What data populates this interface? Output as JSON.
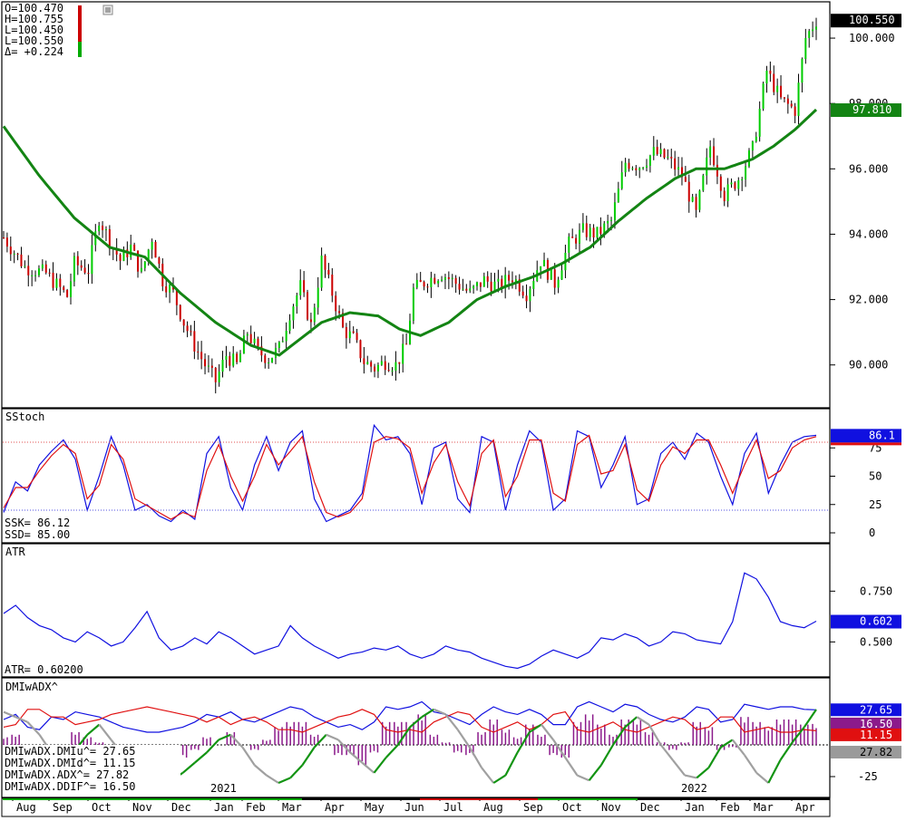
{
  "colors": {
    "price_up": "#00cc00",
    "price_down": "#cc0000",
    "ma": "#138413",
    "stoch_k": "#1010e0",
    "stoch_d": "#e01010",
    "atr": "#1010e0",
    "dmi_plus": "#1010e0",
    "dmi_minus": "#e01010",
    "ddif_hist": "#8b1a8b",
    "adx_up": "#139413",
    "adx_down": "#a0a0a0",
    "panel_border": "#000000",
    "stoch_upper": "#e05050",
    "stoch_lower": "#5050e0",
    "month_bar_red": "#cc0000",
    "month_bar_green": "#00aa00"
  },
  "price_readout": {
    "open": "O=100.470",
    "high": "H=100.755",
    "low": "L=100.450",
    "last": "L=100.550",
    "change": "Δ= +0.224"
  },
  "stoch_readout": {
    "ssk": "SSK=     86.12",
    "ssd": "SSD=     85.00"
  },
  "atr_readout": {
    "atr": "ATR=   0.60200"
  },
  "dmi_readout": {
    "plus": "DMIwADX.DMIu^=     27.65",
    "minus": "DMIwADX.DMId^=     11.15",
    "adx": "DMIwADX.ADX^=      27.82",
    "ddif": "DMIwADX.DDIF^=     16.50"
  },
  "chart_data": [
    {
      "type": "candlestick",
      "title": "",
      "ylim": [
        88.8,
        101.0
      ],
      "yticks": [
        "100.000",
        "98.000",
        "96.000",
        "94.000",
        "92.000",
        "90.000"
      ],
      "last_price_label": "100.550",
      "ma_label": "97.810",
      "x_months": [
        "Aug",
        "Sep",
        "Oct",
        "Nov",
        "Dec",
        "2021",
        "Jan",
        "Feb",
        "Mar",
        "Apr",
        "May",
        "Jun",
        "Jul",
        "Aug",
        "Sep",
        "Oct",
        "Nov",
        "Dec",
        "2022",
        "Jan",
        "Feb",
        "Mar",
        "Apr"
      ],
      "close_path": [
        [
          0,
          93.9
        ],
        [
          6,
          93.0
        ],
        [
          12,
          92.8
        ],
        [
          18,
          92.1
        ],
        [
          20,
          93.1
        ],
        [
          24,
          92.9
        ],
        [
          27,
          94.5
        ],
        [
          30,
          93.8
        ],
        [
          33,
          93.2
        ],
        [
          36,
          93.6
        ],
        [
          39,
          92.8
        ],
        [
          42,
          93.9
        ],
        [
          45,
          92.6
        ],
        [
          48,
          92.2
        ],
        [
          51,
          91.3
        ],
        [
          54,
          90.6
        ],
        [
          57,
          90.0
        ],
        [
          60,
          89.5
        ],
        [
          63,
          90.3
        ],
        [
          66,
          90.0
        ],
        [
          69,
          91.0
        ],
        [
          72,
          90.4
        ],
        [
          75,
          90.2
        ],
        [
          78,
          90.5
        ],
        [
          81,
          91.6
        ],
        [
          84,
          92.4
        ],
        [
          87,
          91.2
        ],
        [
          90,
          93.2
        ],
        [
          93,
          92.2
        ],
        [
          96,
          91.1
        ],
        [
          99,
          90.8
        ],
        [
          102,
          90.1
        ],
        [
          105,
          89.9
        ],
        [
          108,
          90.1
        ],
        [
          111,
          90.0
        ],
        [
          114,
          90.6
        ],
        [
          116,
          92.3
        ],
        [
          120,
          92.6
        ],
        [
          124,
          92.8
        ],
        [
          128,
          92.5
        ],
        [
          132,
          92.2
        ],
        [
          136,
          92.6
        ],
        [
          140,
          92.4
        ],
        [
          144,
          92.7
        ],
        [
          148,
          92.2
        ],
        [
          152,
          93.2
        ],
        [
          156,
          92.5
        ],
        [
          160,
          93.7
        ],
        [
          164,
          94.1
        ],
        [
          168,
          94.0
        ],
        [
          172,
          94.4
        ],
        [
          176,
          96.2
        ],
        [
          180,
          96.1
        ],
        [
          184,
          96.5
        ],
        [
          188,
          96.3
        ],
        [
          192,
          95.8
        ],
        [
          196,
          94.6
        ],
        [
          200,
          96.7
        ],
        [
          204,
          95.2
        ],
        [
          208,
          95.7
        ],
        [
          212,
          96.6
        ],
        [
          216,
          99.0
        ],
        [
          220,
          98.1
        ],
        [
          224,
          97.8
        ],
        [
          227,
          100.0
        ],
        [
          230,
          100.55
        ]
      ],
      "ma_path": [
        [
          0,
          97.3
        ],
        [
          10,
          95.8
        ],
        [
          20,
          94.5
        ],
        [
          30,
          93.6
        ],
        [
          40,
          93.3
        ],
        [
          50,
          92.2
        ],
        [
          60,
          91.3
        ],
        [
          70,
          90.6
        ],
        [
          78,
          90.3
        ],
        [
          84,
          90.8
        ],
        [
          90,
          91.3
        ],
        [
          98,
          91.6
        ],
        [
          106,
          91.5
        ],
        [
          112,
          91.1
        ],
        [
          118,
          90.9
        ],
        [
          126,
          91.3
        ],
        [
          134,
          92.0
        ],
        [
          142,
          92.4
        ],
        [
          150,
          92.7
        ],
        [
          158,
          93.1
        ],
        [
          166,
          93.6
        ],
        [
          174,
          94.4
        ],
        [
          182,
          95.1
        ],
        [
          190,
          95.7
        ],
        [
          196,
          96.0
        ],
        [
          204,
          96.0
        ],
        [
          212,
          96.3
        ],
        [
          218,
          96.7
        ],
        [
          224,
          97.2
        ],
        [
          230,
          97.81
        ]
      ]
    },
    {
      "type": "line",
      "title": "SStoch",
      "ylim": [
        0,
        100
      ],
      "yticks": [
        "75",
        "50",
        "25",
        "0"
      ],
      "overbought": 80,
      "oversold": 20,
      "series": [
        {
          "name": "SSK",
          "last_label": "86.1",
          "values": [
            18,
            45,
            37,
            60,
            72,
            82,
            65,
            20,
            50,
            85,
            60,
            20,
            25,
            15,
            10,
            20,
            12,
            70,
            85,
            40,
            20,
            60,
            85,
            55,
            80,
            90,
            30,
            10,
            15,
            20,
            35,
            95,
            82,
            85,
            70,
            25,
            75,
            80,
            30,
            18,
            85,
            80,
            20,
            60,
            90,
            80,
            20,
            30,
            90,
            85,
            40,
            60,
            85,
            25,
            30,
            70,
            80,
            65,
            88,
            80,
            50,
            25,
            70,
            88,
            35,
            60,
            80,
            85,
            86.12
          ]
        },
        {
          "name": "SSD",
          "values": [
            22,
            40,
            40,
            55,
            68,
            78,
            70,
            30,
            42,
            78,
            65,
            30,
            24,
            18,
            12,
            18,
            14,
            55,
            78,
            50,
            28,
            50,
            78,
            60,
            72,
            85,
            45,
            18,
            14,
            18,
            30,
            80,
            85,
            83,
            75,
            35,
            62,
            78,
            45,
            24,
            70,
            82,
            32,
            50,
            82,
            82,
            35,
            28,
            78,
            86,
            52,
            55,
            78,
            38,
            28,
            60,
            76,
            70,
            82,
            82,
            60,
            35,
            60,
            82,
            48,
            55,
            75,
            82,
            85.0
          ]
        }
      ]
    },
    {
      "type": "line",
      "title": "ATR",
      "ylim": [
        0.35,
        0.93
      ],
      "yticks": [
        "0.750",
        "0.500"
      ],
      "series": [
        {
          "name": "ATR",
          "last_label": "0.602",
          "values": [
            0.64,
            0.68,
            0.62,
            0.58,
            0.56,
            0.52,
            0.5,
            0.55,
            0.52,
            0.48,
            0.5,
            0.57,
            0.65,
            0.52,
            0.46,
            0.48,
            0.52,
            0.49,
            0.55,
            0.52,
            0.48,
            0.44,
            0.46,
            0.48,
            0.58,
            0.52,
            0.48,
            0.45,
            0.42,
            0.44,
            0.45,
            0.47,
            0.46,
            0.48,
            0.44,
            0.42,
            0.44,
            0.48,
            0.46,
            0.45,
            0.42,
            0.4,
            0.38,
            0.37,
            0.39,
            0.43,
            0.46,
            0.44,
            0.42,
            0.45,
            0.52,
            0.51,
            0.54,
            0.52,
            0.48,
            0.5,
            0.55,
            0.54,
            0.51,
            0.5,
            0.49,
            0.6,
            0.84,
            0.81,
            0.72,
            0.6,
            0.58,
            0.57,
            0.602
          ]
        }
      ]
    },
    {
      "type": "line",
      "title": "DMIwADX^",
      "ylim": [
        -40,
        50
      ],
      "yticks": [
        "-25"
      ],
      "series": [
        {
          "name": "DMIu",
          "last_label": "27.65",
          "values": [
            20,
            24,
            14,
            12,
            22,
            20,
            26,
            24,
            22,
            18,
            14,
            12,
            10,
            10,
            12,
            14,
            18,
            24,
            22,
            26,
            20,
            18,
            22,
            26,
            30,
            28,
            22,
            18,
            14,
            16,
            12,
            18,
            30,
            28,
            30,
            34,
            26,
            24,
            20,
            16,
            24,
            30,
            26,
            24,
            28,
            24,
            16,
            16,
            30,
            34,
            30,
            26,
            32,
            30,
            24,
            20,
            18,
            22,
            30,
            28,
            18,
            20,
            32,
            30,
            28,
            30,
            30,
            28,
            27.65
          ]
        },
        {
          "name": "DMId",
          "last_label": "11.15",
          "values": [
            14,
            16,
            28,
            28,
            22,
            22,
            16,
            18,
            20,
            24,
            26,
            28,
            30,
            28,
            26,
            24,
            22,
            18,
            22,
            16,
            20,
            22,
            18,
            12,
            12,
            10,
            14,
            18,
            22,
            24,
            28,
            24,
            12,
            10,
            12,
            10,
            18,
            22,
            26,
            24,
            14,
            10,
            14,
            18,
            12,
            16,
            24,
            26,
            12,
            10,
            14,
            18,
            12,
            10,
            14,
            18,
            22,
            20,
            12,
            14,
            22,
            22,
            10,
            12,
            14,
            10,
            10,
            12,
            11.15
          ]
        },
        {
          "name": "ADX",
          "last_label": "27.82",
          "values": [
            26,
            22,
            18,
            8,
            -6,
            -16,
            -4,
            8,
            16,
            4,
            -8,
            -20,
            -26,
            -30,
            -28,
            -22,
            -14,
            -6,
            4,
            8,
            -2,
            -16,
            -24,
            -30,
            -26,
            -16,
            -2,
            8,
            4,
            -6,
            -14,
            -22,
            -10,
            0,
            14,
            22,
            28,
            24,
            12,
            -2,
            -18,
            -30,
            -24,
            -6,
            10,
            16,
            4,
            -10,
            -24,
            -28,
            -16,
            0,
            14,
            22,
            16,
            0,
            -12,
            -24,
            -26,
            -18,
            -2,
            4,
            -8,
            -22,
            -30,
            -12,
            2,
            14,
            27.82
          ]
        },
        {
          "name": "DDIF",
          "last_label": "16.50",
          "values": [
            6,
            8,
            -14,
            -16,
            0,
            -2,
            10,
            6,
            2,
            -6,
            -12,
            -16,
            -20,
            -18,
            -14,
            -10,
            -4,
            6,
            0,
            10,
            0,
            -4,
            4,
            14,
            18,
            18,
            8,
            0,
            -8,
            -8,
            -16,
            -6,
            18,
            18,
            18,
            24,
            8,
            2,
            -6,
            -8,
            10,
            20,
            12,
            6,
            16,
            8,
            -8,
            -10,
            18,
            24,
            16,
            8,
            20,
            20,
            10,
            2,
            -4,
            2,
            18,
            14,
            -4,
            -2,
            22,
            18,
            14,
            20,
            20,
            16,
            16.5
          ]
        }
      ]
    }
  ]
}
